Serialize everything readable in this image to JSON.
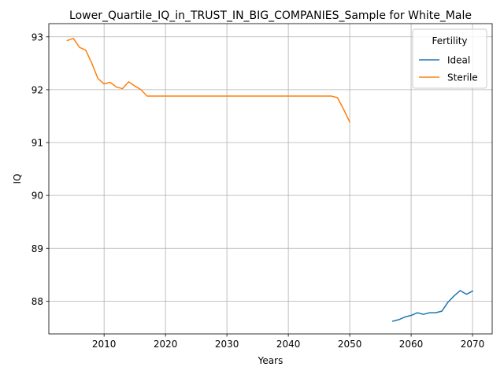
{
  "chart_data": {
    "type": "line",
    "title": "Lower_Quartile_IQ_in_TRUST_IN_BIG_COMPANIES_Sample for White_Male",
    "xlabel": "Years",
    "ylabel": "IQ",
    "xlim": [
      2001,
      2073.2
    ],
    "ylim": [
      87.38,
      93.25
    ],
    "xticks": [
      2010,
      2020,
      2030,
      2040,
      2050,
      2060,
      2070
    ],
    "yticks": [
      88,
      89,
      90,
      91,
      92,
      93
    ],
    "grid": true,
    "legend": {
      "title": "Fertility",
      "placement": "top-right"
    },
    "series": [
      {
        "name": "Ideal",
        "color": "#1f77b4",
        "x": [
          2057,
          2058,
          2059,
          2060,
          2061,
          2062,
          2063,
          2064,
          2065,
          2066,
          2067,
          2068,
          2069,
          2070
        ],
        "y": [
          87.62,
          87.65,
          87.7,
          87.73,
          87.78,
          87.75,
          87.78,
          87.78,
          87.81,
          87.98,
          88.1,
          88.2,
          88.13,
          88.19
        ]
      },
      {
        "name": "Sterile",
        "color": "#ff7f0e",
        "x": [
          2004,
          2005,
          2006,
          2007,
          2008,
          2009,
          2010,
          2011,
          2012,
          2013,
          2014,
          2015,
          2016,
          2017,
          2018,
          2019,
          2020,
          2025,
          2030,
          2035,
          2040,
          2045,
          2046,
          2047,
          2048,
          2049,
          2050
        ],
        "y": [
          92.93,
          92.97,
          92.8,
          92.75,
          92.5,
          92.21,
          92.11,
          92.14,
          92.05,
          92.02,
          92.15,
          92.07,
          92.0,
          91.88,
          91.88,
          91.88,
          91.88,
          91.88,
          91.88,
          91.88,
          91.88,
          91.88,
          91.88,
          91.88,
          91.85,
          91.63,
          91.39
        ]
      }
    ]
  }
}
